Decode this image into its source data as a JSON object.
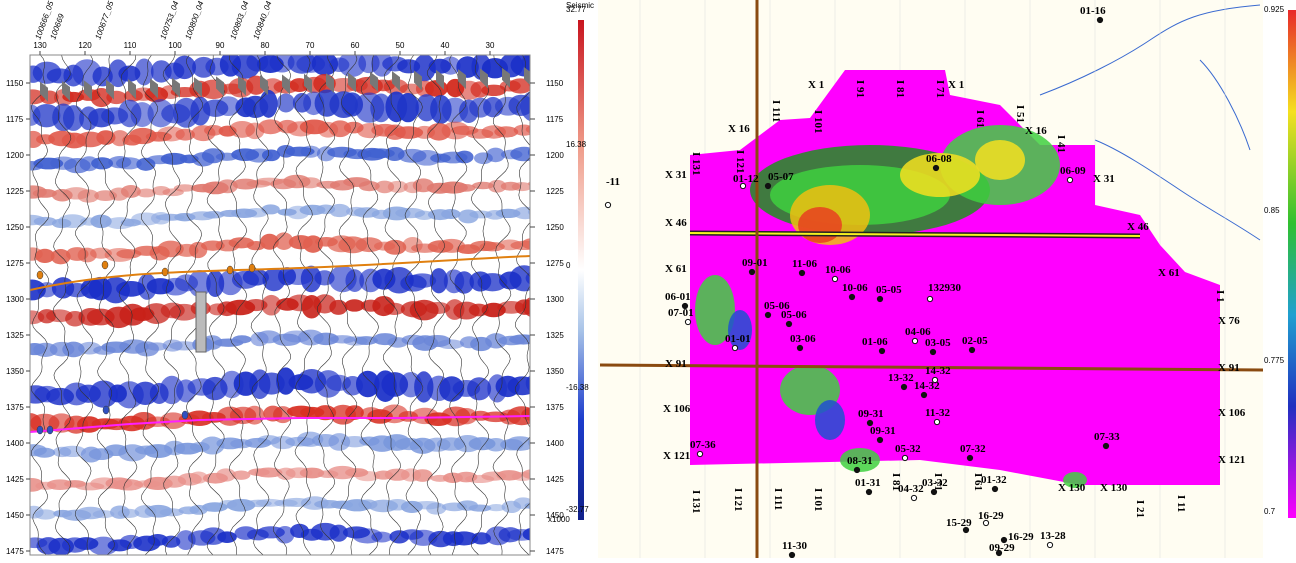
{
  "seismic": {
    "well_names": [
      "100666_05",
      "100669",
      "100677_05",
      "100753_04",
      "100800_04",
      "100803_04",
      "100840_04"
    ],
    "trace_ticks": [
      130,
      120,
      110,
      100,
      90,
      80,
      70,
      60,
      50,
      40,
      30
    ],
    "time_ticks": [
      1150,
      1175,
      1200,
      1225,
      1250,
      1275,
      1300,
      1325,
      1350,
      1375,
      1400,
      1425,
      1450,
      1475
    ],
    "colorbar": {
      "title": "Seismic",
      "labels": [
        32.77,
        16.38,
        0,
        -16.38,
        -32.77
      ],
      "unit": "x1000"
    }
  },
  "map": {
    "grid_labels": [
      "X 1",
      "X 1",
      "X 16",
      "X 16",
      "X 31",
      "X 31",
      "X 46",
      "X 46",
      "X 61",
      "X 61",
      "X 76",
      "X 91",
      "X 91",
      "X 106",
      "X 106",
      "X 121",
      "X 121",
      "X 130",
      "X 130"
    ],
    "inline_labels": [
      "I 111",
      "I 101",
      "I 91",
      "I 81",
      "I 71",
      "I 61",
      "I 51",
      "I 41",
      "I 121",
      "I 131",
      "I 131",
      "I 121",
      "I 111",
      "I 101",
      "I 81",
      "I 71",
      "I 61",
      "I 21",
      "I 11",
      "I 1"
    ],
    "wells": [
      "01-12",
      "05-07",
      "06-08",
      "06-09",
      "09-01",
      "11-06",
      "10-06",
      "10-06",
      "05-05",
      "132930",
      "05-06",
      "05-06",
      "01-01",
      "03-06",
      "01-06",
      "04-06",
      "03-05",
      "02-05",
      "14-32",
      "13-32",
      "14-32",
      "11-32",
      "09-31",
      "09-31",
      "05-32",
      "07-32",
      "07-33",
      "07-36",
      "08-31",
      "01-31",
      "04-32",
      "03-32",
      "01-32",
      "16-29",
      "15-29",
      "16-29",
      "13-28",
      "11-30",
      "09-29",
      "-11",
      "01-16",
      "06-01",
      "07-01"
    ],
    "colorbar_labels": [
      0.925,
      0.85,
      0.775,
      0.7
    ]
  }
}
